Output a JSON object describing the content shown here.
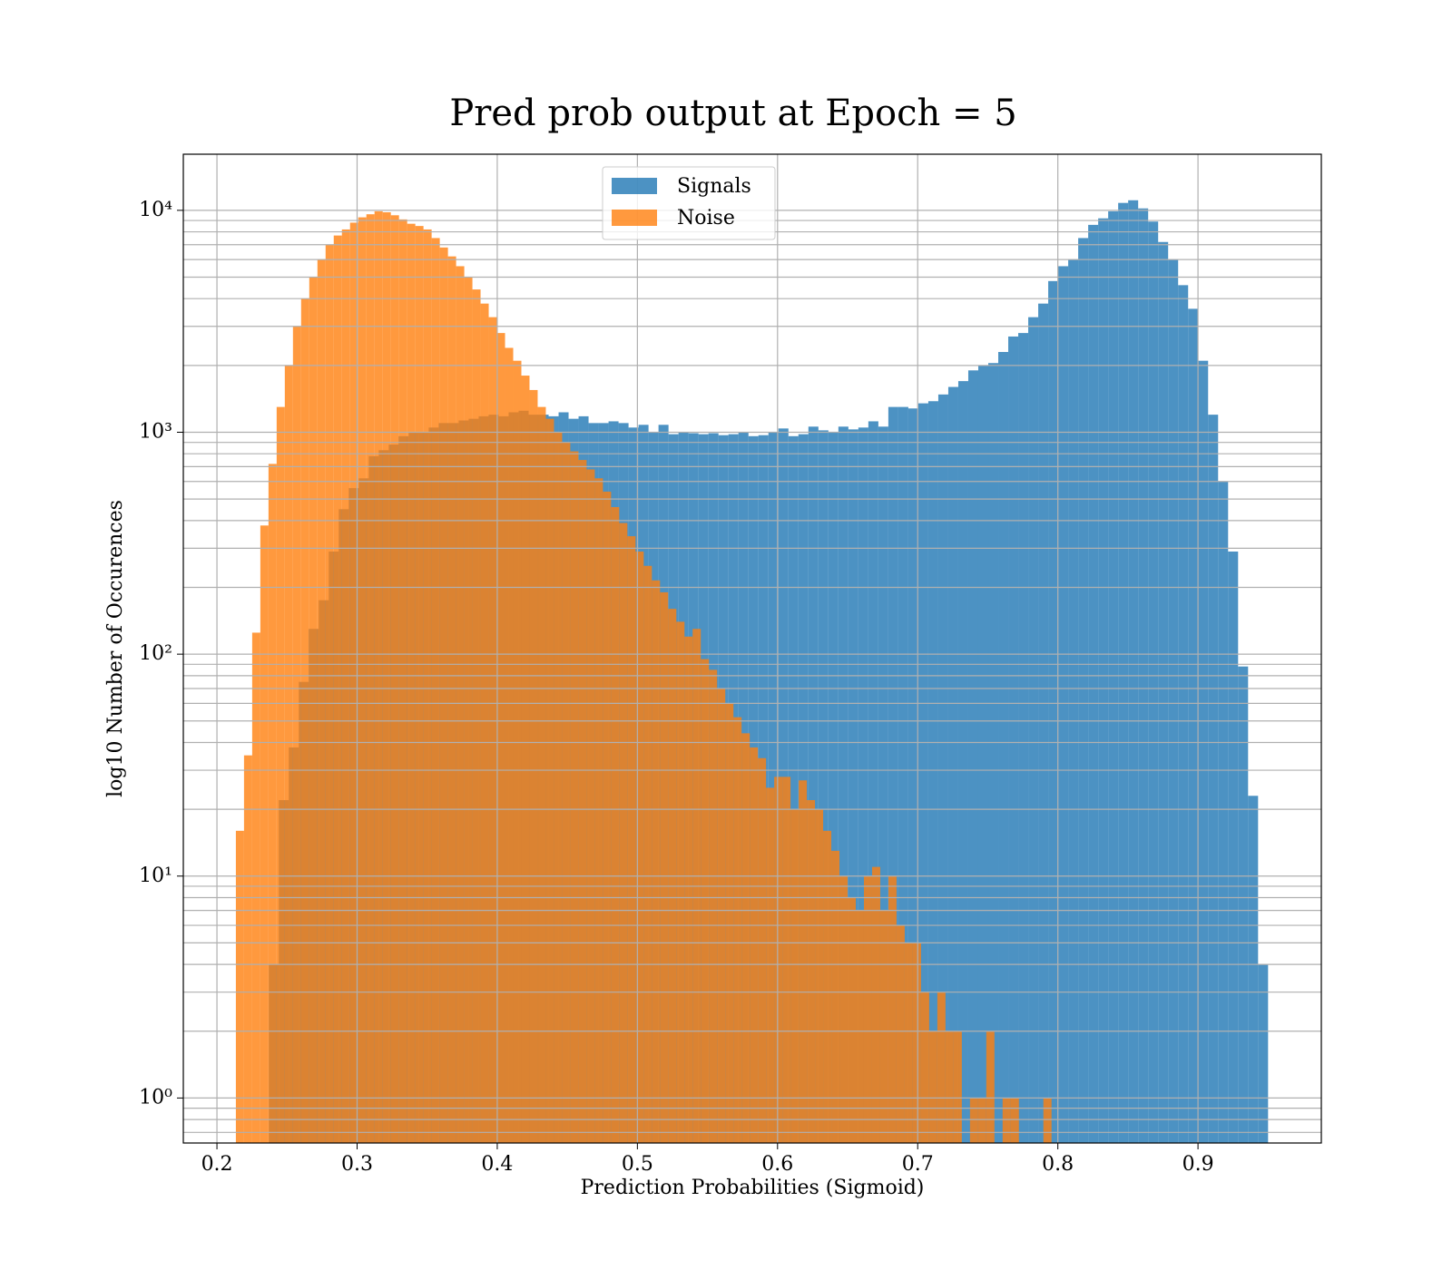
{
  "chart_data": {
    "type": "histogram",
    "title": "Pred prob output at Epoch = 5",
    "xlabel": "Prediction Probabilities (Sigmoid)",
    "ylabel": "log10 Number of Occurences",
    "log_y": true,
    "grid": true,
    "legend": "upper center",
    "xlim": [
      0.176,
      0.988
    ],
    "ylim": [
      0.627,
      17900
    ],
    "xticks": [
      0.2,
      0.3,
      0.4,
      0.5,
      0.6,
      0.7,
      0.8,
      0.9
    ],
    "yticks": [
      {
        "value": 1,
        "label": "10⁰"
      },
      {
        "value": 10,
        "label": "10¹"
      },
      {
        "value": 100,
        "label": "10²"
      },
      {
        "value": 1000,
        "label": "10³"
      },
      {
        "value": 10000,
        "label": "10⁴"
      }
    ],
    "yminor_ticks": [
      0.7,
      0.8,
      0.9,
      2,
      3,
      4,
      5,
      6,
      7,
      8,
      9,
      20,
      30,
      40,
      50,
      60,
      70,
      80,
      90,
      200,
      300,
      400,
      500,
      600,
      700,
      800,
      900,
      2000,
      3000,
      4000,
      5000,
      6000,
      7000,
      8000,
      9000
    ],
    "series": [
      {
        "name": "Signals",
        "color": "#1f77b4",
        "opacity": 0.8,
        "bins": [
          0.237,
          0.24413,
          0.25126,
          0.25839,
          0.26552,
          0.27265,
          0.27978,
          0.28691,
          0.29404,
          0.30117,
          0.3083,
          0.31543,
          0.32256,
          0.32969,
          0.33682,
          0.34395,
          0.35108,
          0.35821,
          0.36534,
          0.37247,
          0.3796,
          0.38673,
          0.39386,
          0.40099,
          0.40812,
          0.41525,
          0.42238,
          0.42951,
          0.43664,
          0.44377,
          0.4509,
          0.45803,
          0.46516,
          0.47229,
          0.47942,
          0.48655,
          0.49368,
          0.50081,
          0.50794,
          0.51507,
          0.5222,
          0.52933,
          0.53646,
          0.54359,
          0.55072,
          0.55785,
          0.56498,
          0.57211,
          0.57924,
          0.58637,
          0.5935,
          0.60063,
          0.60776,
          0.61489,
          0.62202,
          0.62915,
          0.63628,
          0.64341,
          0.65054,
          0.65767,
          0.6648,
          0.67193,
          0.67906,
          0.68619,
          0.69332,
          0.70045,
          0.70758,
          0.71471,
          0.72184,
          0.72897,
          0.7361,
          0.74323,
          0.75036,
          0.75749,
          0.76462,
          0.77175,
          0.77888,
          0.78601,
          0.79314,
          0.80027,
          0.8074,
          0.81453,
          0.82166,
          0.82879,
          0.83592,
          0.84305,
          0.85018,
          0.85731,
          0.86444,
          0.87157,
          0.8787,
          0.88583,
          0.89296,
          0.90009,
          0.90722,
          0.91435,
          0.92148,
          0.92861,
          0.93574,
          0.94287,
          0.95
        ],
        "values": [
          4,
          22,
          38,
          75,
          130,
          175,
          290,
          450,
          560,
          620,
          780,
          830,
          880,
          960,
          1000,
          1000,
          1050,
          1100,
          1100,
          1130,
          1150,
          1180,
          1200,
          1180,
          1230,
          1250,
          1200,
          1200,
          1180,
          1230,
          1150,
          1180,
          1100,
          1100,
          1120,
          1100,
          1050,
          1080,
          1000,
          1080,
          980,
          1000,
          990,
          980,
          990,
          970,
          980,
          1000,
          960,
          970,
          1000,
          1040,
          960,
          980,
          1060,
          1020,
          1000,
          1060,
          1030,
          1050,
          1120,
          1060,
          1300,
          1300,
          1280,
          1350,
          1380,
          1480,
          1600,
          1700,
          1900,
          2000,
          2050,
          2300,
          2700,
          2800,
          3300,
          3800,
          4800,
          5600,
          6000,
          7500,
          8600,
          9200,
          9900,
          10800,
          11100,
          10200,
          8900,
          7200,
          6000,
          4600,
          3600,
          2100,
          1200,
          600,
          290,
          88,
          23,
          4
        ]
      },
      {
        "name": "Noise",
        "color": "#ff7f0e",
        "opacity": 0.8,
        "bins": [
          0.2135,
          0.21932,
          0.22514,
          0.23096,
          0.23678,
          0.2426,
          0.24842,
          0.25424,
          0.26006,
          0.26588,
          0.2717,
          0.27752,
          0.28334,
          0.28916,
          0.29498,
          0.3008,
          0.30662,
          0.31244,
          0.31826,
          0.32408,
          0.3299,
          0.33572,
          0.34154,
          0.34736,
          0.35318,
          0.359,
          0.36482,
          0.37064,
          0.37646,
          0.38228,
          0.3881,
          0.39392,
          0.39974,
          0.40556,
          0.41138,
          0.4172,
          0.42302,
          0.42884,
          0.43466,
          0.44048,
          0.4463,
          0.45212,
          0.45794,
          0.46376,
          0.46958,
          0.4754,
          0.48122,
          0.48704,
          0.49286,
          0.49868,
          0.5045,
          0.51032,
          0.51614,
          0.52196,
          0.52778,
          0.5336,
          0.53942,
          0.54524,
          0.55106,
          0.55688,
          0.5627,
          0.56852,
          0.57434,
          0.58016,
          0.58598,
          0.5918,
          0.59762,
          0.60344,
          0.60926,
          0.61508,
          0.6209,
          0.62672,
          0.63254,
          0.63836,
          0.64418,
          0.65,
          0.65582,
          0.66164,
          0.66746,
          0.67328,
          0.6791,
          0.68492,
          0.69074,
          0.69656,
          0.70238,
          0.7082,
          0.71402,
          0.71984,
          0.72566,
          0.73148,
          0.7373,
          0.74312,
          0.74894,
          0.75476,
          0.76058,
          0.7664,
          0.77222,
          0.77804,
          0.78386,
          0.78968,
          0.7955
        ],
        "values": [
          16,
          35,
          125,
          380,
          720,
          1300,
          2000,
          3000,
          4000,
          5000,
          6000,
          7000,
          7700,
          8200,
          8800,
          9300,
          9600,
          9900,
          9800,
          9500,
          9100,
          8700,
          8500,
          8200,
          7500,
          6800,
          6200,
          5600,
          5000,
          4400,
          3800,
          3300,
          2800,
          2400,
          2100,
          1800,
          1550,
          1300,
          1150,
          1000,
          900,
          820,
          750,
          680,
          620,
          540,
          460,
          390,
          340,
          290,
          250,
          215,
          190,
          160,
          140,
          120,
          130,
          95,
          85,
          70,
          60,
          52,
          44,
          38,
          34,
          25,
          28,
          28,
          20,
          27,
          22,
          20,
          16,
          13,
          10,
          8,
          7,
          10,
          11,
          7,
          10,
          6,
          5,
          5,
          3,
          2,
          3,
          2,
          2,
          0,
          1,
          1,
          2,
          0,
          1,
          1,
          0,
          0,
          0,
          1
        ]
      }
    ]
  }
}
